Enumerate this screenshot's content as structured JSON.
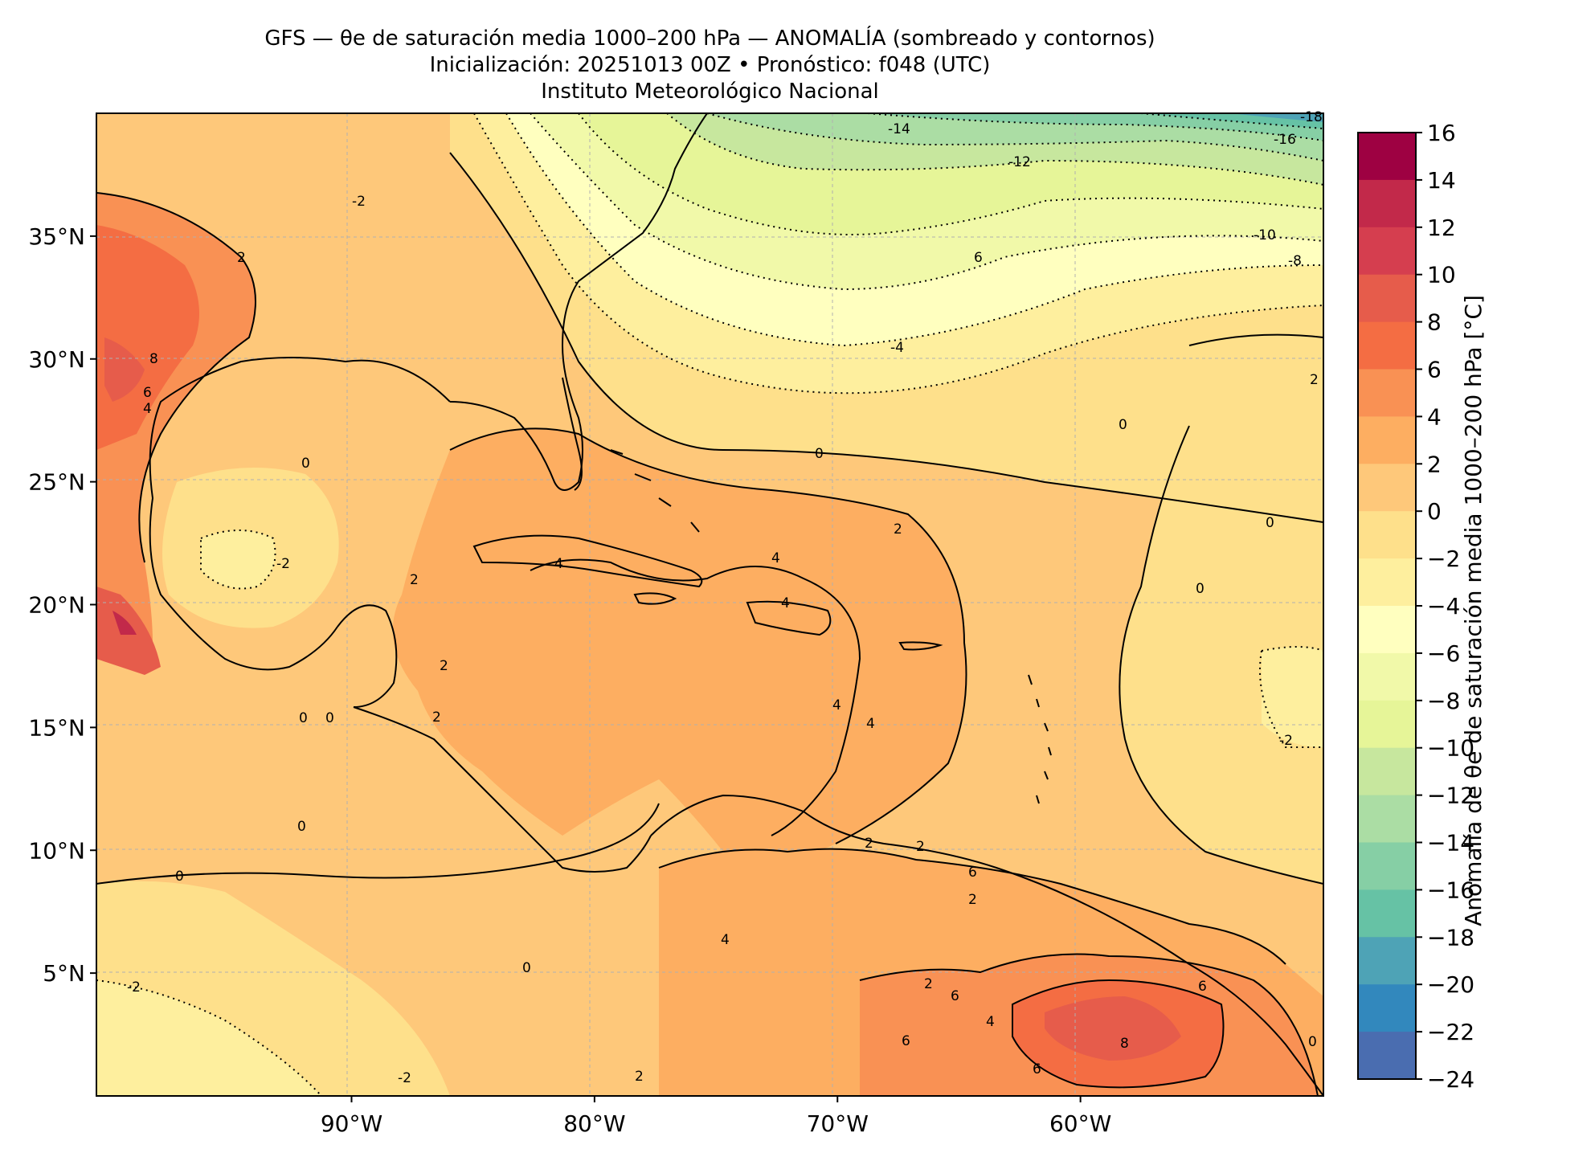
{
  "title": {
    "line1": "GFS — θe de saturación media 1000–200 hPa — ANOMALÍA (sombreado y contornos)",
    "line2": "Inicialización: 20251013 00Z   •   Pronóstico: f048 (UTC)",
    "line3": "Instituto Meteorológico Nacional"
  },
  "axes": {
    "lon_range": [
      -100.5,
      -50
    ],
    "lat_range": [
      0,
      40
    ],
    "x_ticks": [
      "90°W",
      "80°W",
      "70°W",
      "60°W"
    ],
    "x_tick_values": [
      -90,
      -80,
      -70,
      -60
    ],
    "y_ticks": [
      "35°N",
      "30°N",
      "25°N",
      "20°N",
      "15°N",
      "10°N",
      "5°N"
    ],
    "y_tick_values": [
      35,
      30,
      25,
      20,
      15,
      10,
      5
    ]
  },
  "colorbar": {
    "label": "Anomalía de θe de saturación media 1000–200 hPa [°C]",
    "ticks": [
      "16",
      "14",
      "12",
      "10",
      "8",
      "6",
      "4",
      "2",
      "0",
      "−2",
      "−4",
      "−6",
      "−8",
      "−10",
      "−12",
      "−14",
      "−16",
      "−18",
      "−20",
      "−22",
      "−24"
    ],
    "levels": [
      16,
      14,
      12,
      10,
      8,
      6,
      4,
      2,
      0,
      -2,
      -4,
      -6,
      -8,
      -10,
      -12,
      -14,
      -16,
      -18,
      -20,
      -22,
      -24
    ],
    "colors": [
      "#9e0142",
      "#c2294a",
      "#d53e4f",
      "#e65c4b",
      "#f46d43",
      "#f99154",
      "#fdae61",
      "#fec87a",
      "#fee08b",
      "#feef9e",
      "#ffffbf",
      "#f1f9a9",
      "#e6f598",
      "#c7e79e",
      "#abdda4",
      "#86cfa5",
      "#66c2a5",
      "#4ea3b6",
      "#3288bd",
      "#4a6db0",
      "#5e4fa2"
    ]
  },
  "contour_labels": [
    "-18",
    "-16",
    "-14",
    "-12",
    "-10",
    "-8",
    "6",
    "-4",
    "-2",
    "2",
    "8",
    "6",
    "4",
    "0",
    "-2",
    "2",
    "0",
    "4",
    "4",
    "4",
    "2",
    "0",
    "2",
    "0",
    "0",
    "-2",
    "2",
    "4",
    "4",
    "0",
    "0",
    "2",
    "2",
    "0",
    "0",
    "2",
    "6",
    "2",
    "6",
    "6",
    "4",
    "8",
    "6",
    "0",
    "4",
    "6",
    "-2",
    "-2",
    "0",
    "2",
    "2"
  ],
  "colors": {
    "coast": "#000000",
    "grid": "#b0b0b0",
    "frame": "#000000"
  }
}
